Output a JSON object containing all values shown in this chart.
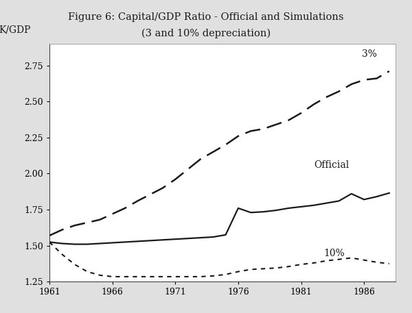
{
  "title_line1": "Figure 6: Capital/GDP Ratio - Official and Simulations",
  "title_line2": "(3 and 10% depreciation)",
  "ylabel": "K/GDP",
  "xlim": [
    1961,
    1988.5
  ],
  "ylim": [
    1.25,
    2.9
  ],
  "yticks": [
    1.25,
    1.5,
    1.75,
    2.0,
    2.25,
    2.5,
    2.75
  ],
  "xticks": [
    1961,
    1966,
    1971,
    1976,
    1981,
    1986
  ],
  "years": [
    1961,
    1962,
    1963,
    1964,
    1965,
    1966,
    1967,
    1968,
    1969,
    1970,
    1971,
    1972,
    1973,
    1974,
    1975,
    1976,
    1977,
    1978,
    1979,
    1980,
    1981,
    1982,
    1983,
    1984,
    1985,
    1986,
    1987,
    1988
  ],
  "official": [
    1.525,
    1.515,
    1.51,
    1.51,
    1.515,
    1.52,
    1.525,
    1.53,
    1.535,
    1.54,
    1.545,
    1.55,
    1.555,
    1.56,
    1.575,
    1.76,
    1.73,
    1.735,
    1.745,
    1.76,
    1.77,
    1.78,
    1.795,
    1.81,
    1.86,
    1.82,
    1.84,
    1.865
  ],
  "sim_3pct": [
    1.57,
    1.61,
    1.64,
    1.66,
    1.68,
    1.72,
    1.76,
    1.81,
    1.855,
    1.9,
    1.96,
    2.03,
    2.1,
    2.15,
    2.2,
    2.26,
    2.295,
    2.31,
    2.34,
    2.37,
    2.42,
    2.48,
    2.53,
    2.57,
    2.62,
    2.65,
    2.66,
    2.71
  ],
  "sim_10pct": [
    1.525,
    1.44,
    1.37,
    1.32,
    1.295,
    1.285,
    1.285,
    1.285,
    1.285,
    1.285,
    1.285,
    1.285,
    1.285,
    1.29,
    1.3,
    1.32,
    1.335,
    1.34,
    1.345,
    1.355,
    1.37,
    1.38,
    1.395,
    1.405,
    1.415,
    1.4,
    1.385,
    1.375
  ],
  "label_3pct": "3%",
  "label_official": "Official",
  "label_10pct": "10%",
  "line_color": "#1a1a1a",
  "bg_color": "#ffffff",
  "fig_bg_color": "#e0e0e0",
  "title_fontsize": 10.5,
  "label_fontsize": 10,
  "tick_fontsize": 9
}
